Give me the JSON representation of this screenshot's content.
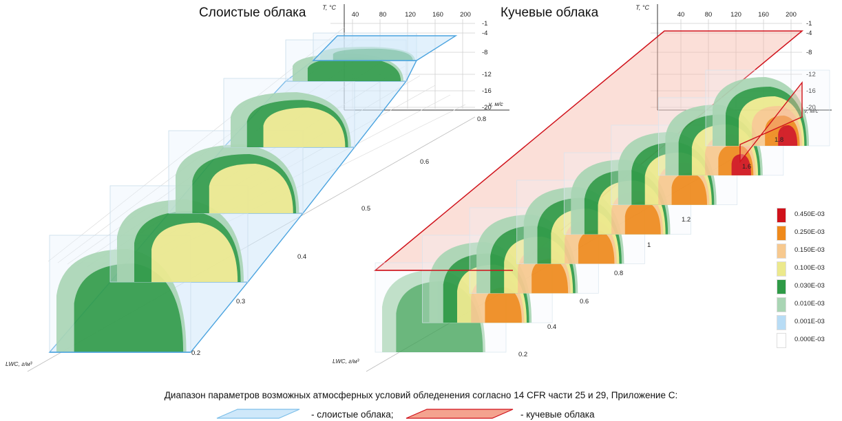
{
  "titles": {
    "stratus": "Слоистые облака",
    "cumulus": "Кучевые облака"
  },
  "axes": {
    "t_axis_label": "T, °C",
    "v_axis_label": "v, м/с",
    "lwc_axis_label": "LWC, г/м³",
    "v_ticks": [
      "40",
      "80",
      "120",
      "160",
      "200"
    ],
    "t_ticks": [
      "-1",
      "-4",
      "-8",
      "-12",
      "-16",
      "-20"
    ]
  },
  "chart_data": [
    {
      "type": "heatmap",
      "title": "Слоистые облака",
      "xlabel": "v, м/с",
      "ylabel": "T, °C",
      "zlabel": "LWC, г/м³",
      "x_ticks": [
        40,
        80,
        120,
        160,
        200
      ],
      "y_ticks": [
        -1,
        -4,
        -8,
        -12,
        -16,
        -20
      ],
      "lwc_ticks": [
        0.2,
        0.3,
        0.4,
        0.5,
        0.6,
        0.8
      ],
      "max_level_per_slice": [
        "0.030E-03",
        "0.100E-03",
        "0.100E-03",
        "0.100E-03",
        "0.030E-03",
        "0.030E-03"
      ]
    },
    {
      "type": "heatmap",
      "title": "Кучевые облака",
      "xlabel": "v, м/с",
      "ylabel": "T, °C",
      "zlabel": "LWC, г/м³",
      "x_ticks": [
        40,
        80,
        120,
        160,
        200
      ],
      "y_ticks": [
        -1,
        -4,
        -8,
        -12,
        -16,
        -20
      ],
      "lwc_ticks": [
        0.2,
        0.4,
        0.6,
        0.8,
        1.0,
        1.2,
        1.6,
        1.8
      ],
      "max_level_per_slice": [
        "0.030E-03",
        "0.250E-03",
        "0.250E-03",
        "0.250E-03",
        "0.250E-03",
        "0.250E-03",
        "0.450E-03",
        "0.450E-03"
      ]
    }
  ],
  "colorbar": [
    {
      "label": "0.450E-03",
      "color": "#d0121b"
    },
    {
      "label": "0.250E-03",
      "color": "#ef8a1c"
    },
    {
      "label": "0.150E-03",
      "color": "#f7c98f"
    },
    {
      "label": "0.100E-03",
      "color": "#ece98c"
    },
    {
      "label": "0.030E-03",
      "color": "#2f9a47"
    },
    {
      "label": "0.010E-03",
      "color": "#a9d5b4"
    },
    {
      "label": "0.001E-03",
      "color": "#b8dcf5"
    },
    {
      "label": "0.000E-03",
      "color": "#ffffff"
    }
  ],
  "caption": "Диапазон параметров возможных атмосферных условий обледенения согласно 14 CFR части 25 и 29, Приложение С:",
  "legend": {
    "stratus_label": "- слоистые облака;",
    "cumulus_label": "- кучевые облака",
    "stratus_color": "#bfe0f7",
    "cumulus_color": "#f4a38f"
  }
}
